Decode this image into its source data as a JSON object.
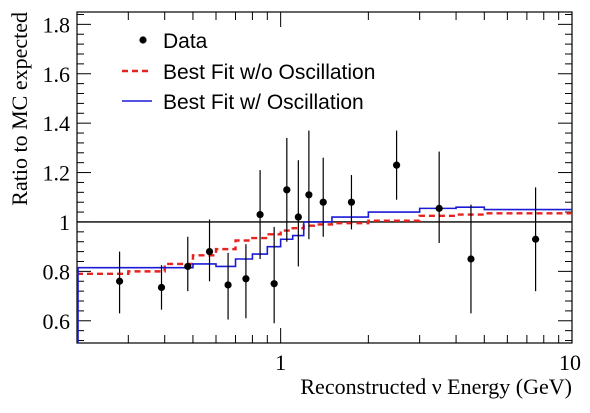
{
  "chart_data": {
    "type": "scatter",
    "title": "",
    "xlabel": "Reconstructed ν Energy (GeV)",
    "ylabel": "Ratio to MC expected",
    "x_scale": "log",
    "xlim": [
      0.2,
      10
    ],
    "ylim": [
      0.51,
      1.85
    ],
    "x_tick_labels": [
      "1",
      "10"
    ],
    "y_tick_labels": [
      "0.6",
      "0.8",
      "1",
      "1.2",
      "1.4",
      "1.6",
      "1.8"
    ],
    "reference_line": 1.0,
    "legend_position": "top-left",
    "colors": {
      "data": "#000000",
      "no_osc": "#e8231f",
      "osc": "#1b1bd6",
      "reference": "#000000"
    },
    "series": [
      {
        "name": "Data",
        "kind": "points",
        "points": [
          {
            "x": 0.28,
            "y": 0.76,
            "err_lo": 0.13,
            "err_hi": 0.12
          },
          {
            "x": 0.39,
            "y": 0.735,
            "err_lo": 0.09,
            "err_hi": 0.09
          },
          {
            "x": 0.48,
            "y": 0.82,
            "err_lo": 0.1,
            "err_hi": 0.12
          },
          {
            "x": 0.57,
            "y": 0.88,
            "err_lo": 0.12,
            "err_hi": 0.13
          },
          {
            "x": 0.66,
            "y": 0.745,
            "err_lo": 0.14,
            "err_hi": 0.13
          },
          {
            "x": 0.76,
            "y": 0.77,
            "err_lo": 0.16,
            "err_hi": 0.14
          },
          {
            "x": 0.85,
            "y": 1.03,
            "err_lo": 0.18,
            "err_hi": 0.18
          },
          {
            "x": 0.95,
            "y": 0.75,
            "err_lo": 0.16,
            "err_hi": 0.23
          },
          {
            "x": 1.05,
            "y": 1.13,
            "err_lo": 0.21,
            "err_hi": 0.21
          },
          {
            "x": 1.15,
            "y": 1.02,
            "err_lo": 0.2,
            "err_hi": 0.23
          },
          {
            "x": 1.25,
            "y": 1.11,
            "err_lo": 0.18,
            "err_hi": 0.26
          },
          {
            "x": 1.4,
            "y": 1.08,
            "err_lo": 0.14,
            "err_hi": 0.18
          },
          {
            "x": 1.75,
            "y": 1.08,
            "err_lo": 0.11,
            "err_hi": 0.11
          },
          {
            "x": 2.5,
            "y": 1.23,
            "err_lo": 0.14,
            "err_hi": 0.14
          },
          {
            "x": 3.5,
            "y": 1.055,
            "err_lo": 0.14,
            "err_hi": 0.23
          },
          {
            "x": 4.5,
            "y": 0.85,
            "err_lo": 0.22,
            "err_hi": 0.22
          },
          {
            "x": 7.5,
            "y": 0.93,
            "err_lo": 0.21,
            "err_hi": 0.21
          }
        ]
      },
      {
        "name": "Best Fit w/o Oscillation",
        "kind": "step-dashed",
        "edges": [
          0.2,
          0.3,
          0.4,
          0.5,
          0.6,
          0.7,
          0.8,
          0.9,
          1.0,
          1.1,
          1.2,
          1.3,
          1.5,
          2.0,
          3.0,
          4.0,
          5.0,
          10.0
        ],
        "values": [
          0.79,
          0.8,
          0.83,
          0.865,
          0.89,
          0.925,
          0.935,
          0.95,
          0.965,
          0.975,
          0.985,
          0.99,
          0.995,
          1.005,
          1.025,
          1.03,
          1.035
        ]
      },
      {
        "name": "Best Fit w/ Oscillation",
        "kind": "step",
        "edges": [
          0.2,
          0.3,
          0.4,
          0.5,
          0.6,
          0.7,
          0.8,
          0.9,
          1.0,
          1.1,
          1.2,
          1.3,
          1.5,
          2.0,
          3.0,
          4.0,
          5.0,
          10.0
        ],
        "values": [
          0.815,
          0.815,
          0.815,
          0.83,
          0.82,
          0.85,
          0.87,
          0.9,
          0.93,
          0.945,
          1.0,
          1.0,
          1.02,
          1.04,
          1.055,
          1.06,
          1.05
        ]
      }
    ]
  }
}
